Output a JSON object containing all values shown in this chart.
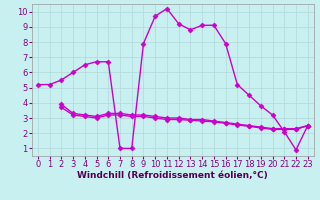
{
  "bg_color": "#c8f0f0",
  "grid_color": "#b0d8d8",
  "line_color": "#cc00cc",
  "marker": "D",
  "markersize": 2.5,
  "linewidth": 1.0,
  "xlabel": "Windchill (Refroidissement éolien,°C)",
  "xlabel_fontsize": 6.5,
  "tick_fontsize": 6,
  "xlim": [
    -0.5,
    23.5
  ],
  "ylim": [
    0.5,
    10.5
  ],
  "yticks": [
    1,
    2,
    3,
    4,
    5,
    6,
    7,
    8,
    9,
    10
  ],
  "xticks": [
    0,
    1,
    2,
    3,
    4,
    5,
    6,
    7,
    8,
    9,
    10,
    11,
    12,
    13,
    14,
    15,
    16,
    17,
    18,
    19,
    20,
    21,
    22,
    23
  ],
  "series": [
    {
      "comment": "upper curve: 0-1 at ~5.2, jumps to 4-5 at 6.5-6.7, drops to 7-8 at 1.0, rises 9-17, falls 17-22, ends 23",
      "x": [
        0,
        1,
        2,
        3,
        4,
        5,
        6,
        7,
        8,
        9,
        10,
        11,
        12,
        13,
        14,
        15,
        16,
        17,
        18,
        19,
        20,
        21,
        22,
        23
      ],
      "y": [
        5.2,
        5.2,
        5.5,
        6.0,
        6.5,
        6.7,
        6.7,
        1.0,
        1.0,
        7.9,
        9.7,
        10.2,
        9.2,
        8.8,
        9.1,
        9.1,
        7.9,
        5.2,
        4.5,
        3.8,
        3.2,
        2.1,
        0.9,
        2.5
      ]
    },
    {
      "x": [
        2,
        3,
        4,
        5,
        6,
        7,
        8,
        9,
        10,
        11,
        12,
        13,
        14,
        15,
        16,
        17,
        18,
        19,
        20,
        21,
        22,
        23
      ],
      "y": [
        3.9,
        3.3,
        3.2,
        3.1,
        3.3,
        3.3,
        3.2,
        3.2,
        3.1,
        3.0,
        3.0,
        2.9,
        2.9,
        2.8,
        2.7,
        2.6,
        2.5,
        2.4,
        2.3,
        2.3,
        2.3,
        2.5
      ]
    },
    {
      "x": [
        2,
        3,
        4,
        5,
        6,
        7,
        8,
        9,
        10,
        11,
        12,
        13,
        14,
        15,
        16,
        17,
        18,
        19,
        20,
        21,
        22,
        23
      ],
      "y": [
        3.7,
        3.2,
        3.1,
        3.0,
        3.2,
        3.2,
        3.1,
        3.1,
        3.0,
        2.9,
        2.9,
        2.85,
        2.8,
        2.75,
        2.65,
        2.55,
        2.45,
        2.35,
        2.25,
        2.25,
        2.25,
        2.5
      ]
    }
  ]
}
